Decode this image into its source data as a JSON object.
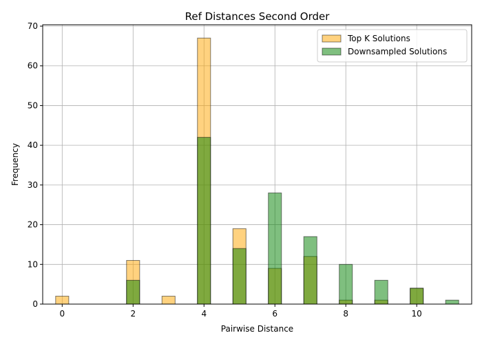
{
  "chart_data": {
    "type": "bar",
    "title": "Ref Distances Second Order",
    "xlabel": "Pairwise Distance",
    "ylabel": "Frequency",
    "xlim": [
      -0.55,
      11.55
    ],
    "ylim": [
      0,
      70.35
    ],
    "xticks": [
      0,
      2,
      4,
      6,
      8,
      10
    ],
    "yticks": [
      0,
      10,
      20,
      30,
      40,
      50,
      60,
      70
    ],
    "bin_width": 0.37,
    "grid": true,
    "legend_position": "top-right",
    "series": [
      {
        "name": "Top K Solutions",
        "color": "#ffa500",
        "alpha": 0.5,
        "x": [
          0,
          2,
          3,
          4,
          5,
          6,
          7,
          8,
          9,
          10
        ],
        "values": [
          2,
          11,
          2,
          67,
          19,
          9,
          12,
          1,
          1,
          4
        ]
      },
      {
        "name": "Downsampled Solutions",
        "color": "#008000",
        "alpha": 0.5,
        "x": [
          2,
          4,
          5,
          6,
          7,
          8,
          9,
          10,
          11
        ],
        "values": [
          6,
          42,
          14,
          28,
          17,
          10,
          6,
          4,
          1
        ]
      }
    ]
  }
}
